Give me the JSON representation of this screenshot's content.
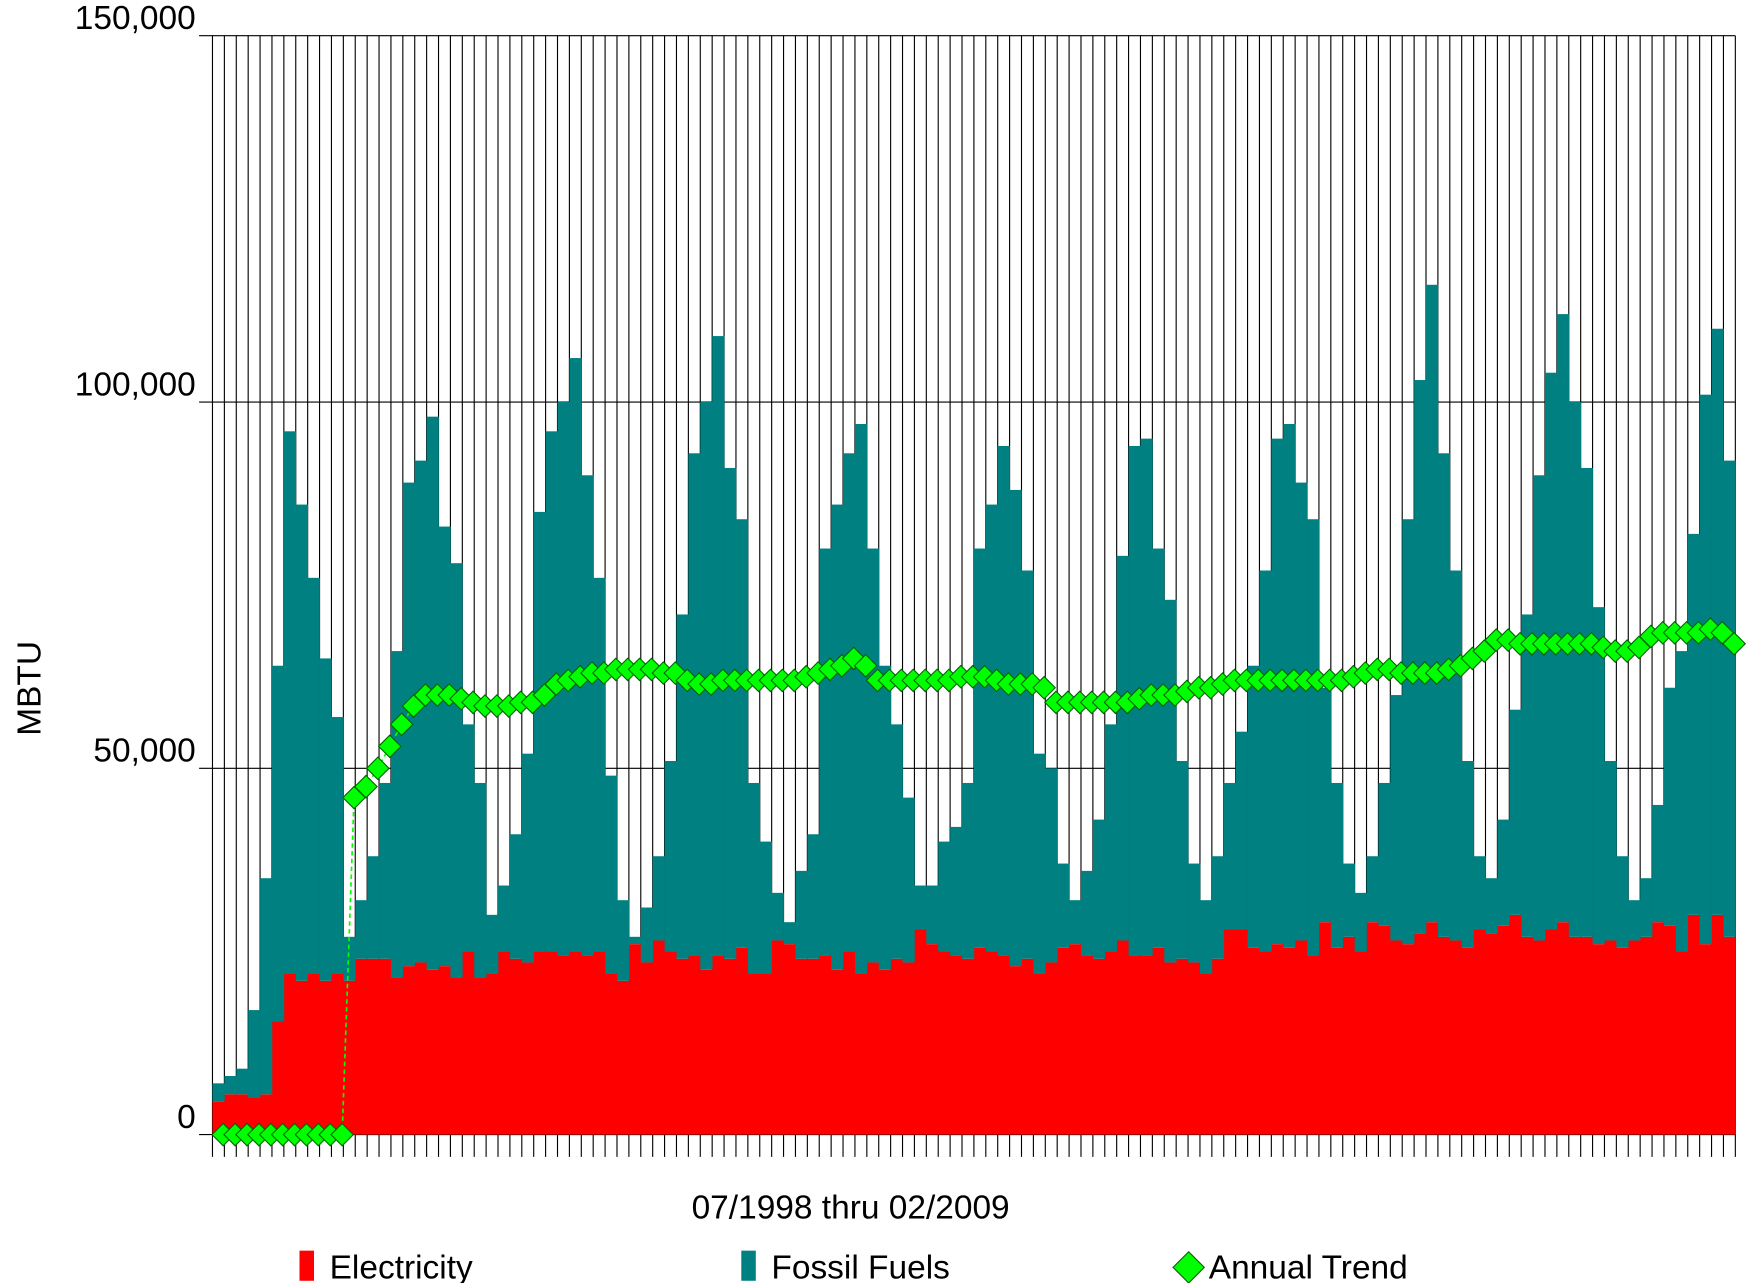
{
  "chart_data": {
    "type": "bar",
    "stacked": true,
    "x_label": "07/1998 thru 02/2009",
    "y_label": "MBTU",
    "ylim": [
      0,
      150000
    ],
    "yticks": [
      0,
      {
        "value": 50000,
        "label": "50,000"
      },
      {
        "value": 100000,
        "label": "100,000"
      },
      {
        "value": 150000,
        "label": "150,000"
      }
    ],
    "grid": true,
    "series": [
      {
        "name": "Electricity",
        "type": "bar",
        "color": "#ff0000",
        "values": [
          4500,
          5500,
          5500,
          5000,
          5500,
          15500,
          22000,
          21000,
          22000,
          21000,
          22000,
          21000,
          24000,
          24000,
          24000,
          21500,
          23000,
          23500,
          22500,
          23000,
          21500,
          25000,
          21500,
          22000,
          25000,
          24000,
          23500,
          25000,
          25000,
          24500,
          25000,
          24500,
          25000,
          22000,
          21000,
          26000,
          23500,
          26500,
          25000,
          24000,
          24500,
          22500,
          24500,
          24000,
          25500,
          22000,
          22000,
          26500,
          26000,
          24000,
          24000,
          24500,
          22500,
          25000,
          22000,
          23500,
          22500,
          24000,
          23500,
          28000,
          26000,
          25000,
          24500,
          24000,
          25500,
          25000,
          24500,
          23000,
          24000,
          22000,
          23500,
          25500,
          26000,
          24500,
          24000,
          25000,
          26500,
          24500,
          24500,
          25500,
          23500,
          24000,
          23500,
          22000,
          24000,
          28000,
          28000,
          25500,
          25000,
          26000,
          25500,
          26500,
          24500,
          29000,
          25500,
          27000,
          25000,
          29000,
          28500,
          26500,
          26000,
          27500,
          29000,
          27000,
          26500,
          25500,
          28000,
          27500,
          28500,
          30000,
          27000,
          26500,
          28000,
          29000,
          27000,
          27000,
          26000,
          26500,
          25500,
          26500,
          27000,
          29000,
          28500,
          25000,
          30000,
          26000,
          30000,
          27000
        ]
      },
      {
        "name": "Fossil Fuels",
        "type": "bar",
        "color": "#008080",
        "values": [
          2500,
          2500,
          3500,
          12000,
          29500,
          48500,
          74000,
          65000,
          54000,
          44000,
          35000,
          6000,
          8000,
          14000,
          24000,
          44500,
          66000,
          68500,
          75500,
          60000,
          56500,
          31000,
          26500,
          8000,
          9000,
          17000,
          28500,
          60000,
          71000,
          75500,
          81000,
          65500,
          51000,
          27000,
          11000,
          1000,
          7500,
          11500,
          26000,
          47000,
          68500,
          77500,
          84500,
          67000,
          58500,
          26000,
          18000,
          6500,
          3000,
          12000,
          17000,
          55500,
          63500,
          68000,
          75000,
          56500,
          41500,
          32000,
          22500,
          6000,
          8000,
          15000,
          17500,
          24000,
          54500,
          61000,
          69500,
          65000,
          53000,
          30000,
          26500,
          11500,
          6000,
          11500,
          19000,
          31000,
          52500,
          69500,
          70500,
          54500,
          49500,
          27000,
          13500,
          10000,
          14000,
          20000,
          27000,
          38500,
          52000,
          69000,
          71500,
          62500,
          59500,
          32000,
          22500,
          10000,
          8000,
          9000,
          19500,
          33500,
          58000,
          75500,
          87000,
          66000,
          50500,
          25500,
          10000,
          7500,
          14500,
          28000,
          44000,
          63500,
          76000,
          83000,
          73000,
          64000,
          46000,
          24500,
          12500,
          5500,
          8000,
          16000,
          32500,
          41000,
          52000,
          75000,
          80000,
          65000
        ]
      },
      {
        "name": "Annual Trend",
        "type": "line",
        "color": "#00ff00",
        "values": [
          0,
          0,
          0,
          0,
          0,
          0,
          0,
          0,
          0,
          0,
          0,
          46000,
          47500,
          50000,
          53000,
          56000,
          58500,
          60000,
          60000,
          60000,
          59500,
          59000,
          58500,
          58500,
          58500,
          59000,
          59000,
          60000,
          61500,
          62000,
          62500,
          63000,
          63000,
          63500,
          63500,
          63500,
          63500,
          63000,
          63000,
          62000,
          61500,
          61500,
          62000,
          62000,
          62000,
          62000,
          62000,
          62000,
          62000,
          62500,
          63000,
          63500,
          64000,
          65000,
          64000,
          62000,
          62000,
          62000,
          62000,
          62000,
          62000,
          62000,
          62500,
          62500,
          62500,
          62000,
          61500,
          61500,
          61500,
          61000,
          59000,
          59000,
          59000,
          59000,
          59000,
          59000,
          59000,
          59500,
          60000,
          60000,
          60000,
          60500,
          61000,
          61000,
          61500,
          62000,
          62000,
          62000,
          62000,
          62000,
          62000,
          62000,
          62000,
          62000,
          62000,
          62500,
          63000,
          63500,
          63500,
          63000,
          63000,
          63000,
          63000,
          63500,
          64000,
          65000,
          66000,
          67500,
          67500,
          67000,
          67000,
          67000,
          67000,
          67000,
          67000,
          67000,
          66500,
          66000,
          66000,
          66500,
          68000,
          68500,
          68500,
          68500,
          68500,
          69000,
          68500,
          67000
        ]
      }
    ]
  }
}
